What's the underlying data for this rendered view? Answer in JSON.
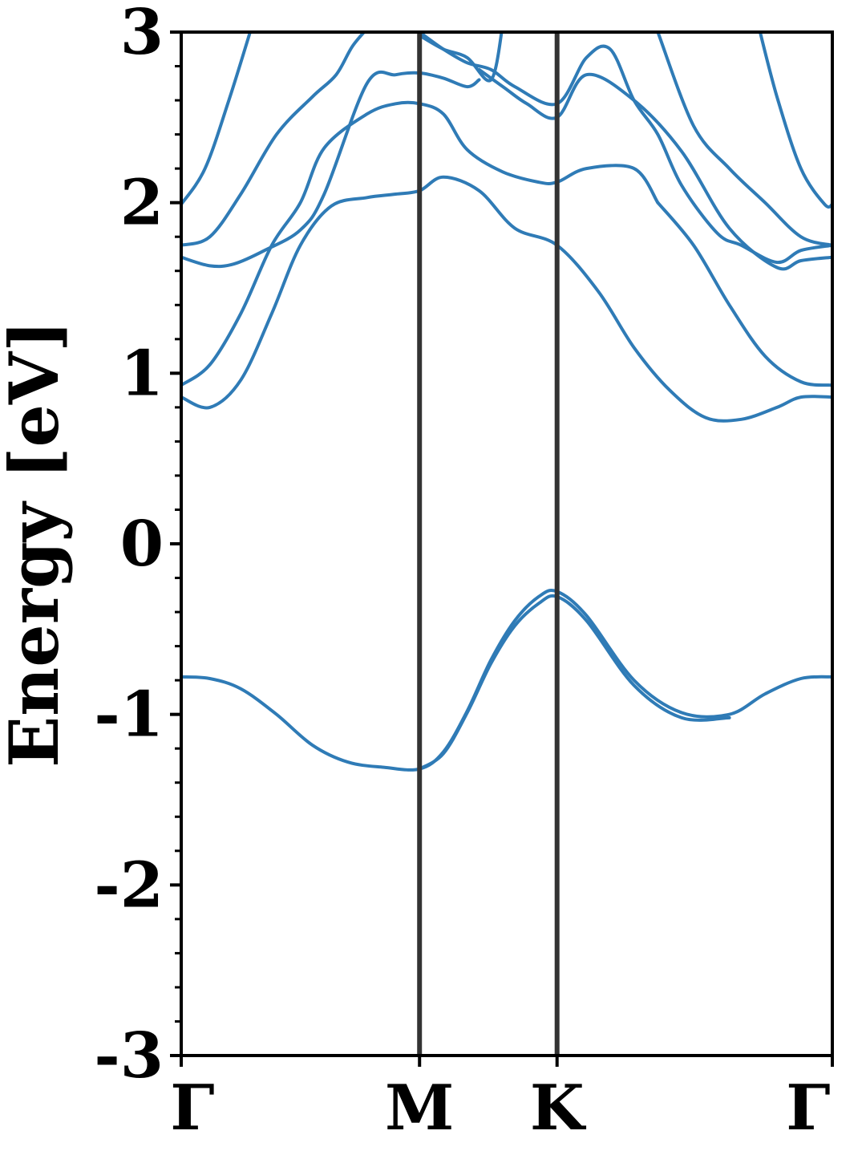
{
  "chart_data": {
    "type": "line",
    "title": "",
    "ylabel": "Energy [eV]",
    "xlabel": "",
    "ylim": [
      -3,
      3
    ],
    "yticks": [
      "-3",
      "-2",
      "-1",
      "0",
      "1",
      "2",
      "3"
    ],
    "xticks": [
      {
        "label": "Γ",
        "x": 0.0
      },
      {
        "label": "M",
        "x": 1.0
      },
      {
        "label": "K",
        "x": 1.577
      },
      {
        "label": "Γ",
        "x": 2.732
      }
    ],
    "xlim": [
      0,
      2.732
    ],
    "high_symmetry_lines": [
      1.0,
      1.577
    ],
    "series_color": "#2f7bb6",
    "line_color": "#333333",
    "series": [
      {
        "x": [
          0,
          0.12,
          0.25,
          0.4,
          0.55,
          0.7,
          0.85,
          1.0,
          1.1,
          1.2,
          1.3,
          1.4,
          1.5,
          1.577,
          1.7,
          1.9,
          2.1,
          2.3,
          2.45,
          2.6,
          2.732
        ],
        "values": [
          -0.78,
          -0.79,
          -0.85,
          -1.0,
          -1.18,
          -1.28,
          -1.31,
          -1.32,
          -1.22,
          -0.98,
          -0.68,
          -0.45,
          -0.31,
          -0.28,
          -0.42,
          -0.8,
          -0.99,
          -1.0,
          -0.88,
          -0.79,
          -0.78
        ]
      },
      {
        "x": [
          1.0,
          1.1,
          1.2,
          1.3,
          1.4,
          1.5,
          1.577,
          1.7,
          1.9,
          2.1,
          2.3
        ],
        "values": [
          -1.32,
          -1.23,
          -0.99,
          -0.7,
          -0.48,
          -0.35,
          -0.31,
          -0.45,
          -0.83,
          -1.02,
          -1.02
        ]
      },
      {
        "x": [
          0,
          0.12,
          0.25,
          0.38,
          0.5,
          0.63,
          0.78,
          0.9,
          1.0,
          1.1,
          1.25,
          1.4,
          1.577,
          1.75,
          1.9,
          2.05,
          2.2,
          2.35,
          2.5,
          2.6,
          2.732
        ],
        "values": [
          0.86,
          0.8,
          0.96,
          1.35,
          1.75,
          1.98,
          2.03,
          2.05,
          2.07,
          2.15,
          2.07,
          1.85,
          1.75,
          1.48,
          1.15,
          0.9,
          0.74,
          0.73,
          0.8,
          0.86,
          0.86
        ]
      },
      {
        "x": [
          0,
          0.12,
          0.25,
          0.38,
          0.5,
          0.6,
          0.78,
          0.9,
          1.0,
          1.1,
          1.2,
          1.35,
          1.5,
          1.577,
          1.7,
          1.9,
          2.0
        ],
        "values": [
          0.93,
          1.05,
          1.35,
          1.75,
          2.0,
          2.32,
          2.52,
          2.58,
          2.58,
          2.52,
          2.31,
          2.18,
          2.12,
          2.12,
          2.2,
          2.2,
          2.0
        ]
      },
      {
        "x": [
          2.0,
          2.15,
          2.3,
          2.45,
          2.6,
          2.732
        ],
        "values": [
          2.0,
          1.75,
          1.4,
          1.1,
          0.95,
          0.93
        ]
      },
      {
        "x": [
          0,
          0.12,
          0.22,
          0.35,
          0.5,
          0.6,
          0.78,
          0.9,
          1.0,
          1.1,
          1.2,
          1.25
        ],
        "values": [
          1.68,
          1.63,
          1.64,
          1.72,
          1.84,
          2.05,
          2.7,
          2.75,
          2.76,
          2.73,
          2.68,
          2.72
        ]
      },
      {
        "x": [
          1.25,
          1.35,
          1.45,
          1.577,
          1.7,
          1.9,
          2.1,
          2.3,
          2.5,
          2.6,
          2.732
        ],
        "values": [
          2.78,
          2.68,
          2.58,
          2.5,
          2.75,
          2.6,
          2.3,
          1.85,
          1.62,
          1.66,
          1.68
        ]
      },
      {
        "x": [
          0,
          0.12,
          0.25,
          0.4,
          0.55,
          0.65,
          0.72,
          0.8
        ],
        "values": [
          1.75,
          1.8,
          2.05,
          2.4,
          2.62,
          2.75,
          2.92,
          3.05
        ]
      },
      {
        "x": [
          1.0,
          1.1,
          1.2,
          1.3,
          1.4,
          1.577,
          1.7,
          1.8,
          1.9,
          2.0,
          2.1,
          2.25,
          2.35,
          2.5,
          2.6,
          2.732
        ],
        "values": [
          3.0,
          2.9,
          2.82,
          2.78,
          2.68,
          2.58,
          2.85,
          2.9,
          2.6,
          2.4,
          2.1,
          1.82,
          1.75,
          1.65,
          1.72,
          1.75
        ]
      },
      {
        "x": [
          2.0,
          2.15,
          2.3,
          2.45,
          2.6,
          2.732
        ],
        "values": [
          3.0,
          2.45,
          2.2,
          2.0,
          1.8,
          1.75
        ]
      },
      {
        "x": [
          0,
          0.1,
          0.2,
          0.3
        ],
        "values": [
          1.99,
          2.2,
          2.6,
          3.05
        ]
      },
      {
        "x": [
          2.42,
          2.5,
          2.6,
          2.7,
          2.732
        ],
        "values": [
          3.05,
          2.62,
          2.2,
          1.99,
          1.99
        ]
      },
      {
        "x": [
          1.0,
          1.1,
          1.2,
          1.3,
          1.35
        ],
        "values": [
          2.98,
          2.9,
          2.85,
          2.72,
          3.05
        ]
      }
    ]
  }
}
